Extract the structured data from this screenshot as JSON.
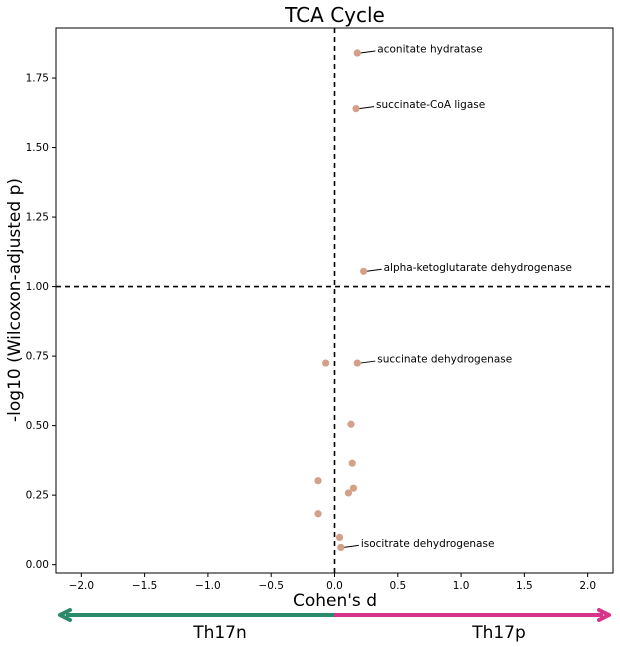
{
  "chart_data": {
    "type": "scatter",
    "title": "TCA Cycle",
    "xlabel": "Cohen's d",
    "ylabel": "-log10 (Wilcoxon-adjusted p)",
    "xlim": [
      -2.2,
      2.2
    ],
    "ylim": [
      -0.03,
      1.93
    ],
    "xticks": [
      -2.0,
      -1.5,
      -1.0,
      -0.5,
      0.0,
      0.5,
      1.0,
      1.5,
      2.0
    ],
    "xtick_labels": [
      "−2.0",
      "−1.5",
      "−1.0",
      "−0.5",
      "0.0",
      "0.5",
      "1.0",
      "1.5",
      "2.0"
    ],
    "yticks": [
      0.0,
      0.25,
      0.5,
      0.75,
      1.0,
      1.25,
      1.5,
      1.75
    ],
    "ytick_labels": [
      "0.00",
      "0.25",
      "0.50",
      "0.75",
      "1.00",
      "1.25",
      "1.50",
      "1.75"
    ],
    "vline_x": 0.0,
    "hline_y": 1.0,
    "grid": false,
    "point_color": "#d4a088",
    "points": [
      {
        "x": 0.18,
        "y": 1.84,
        "label": "aconitate hydratase"
      },
      {
        "x": 0.17,
        "y": 1.64,
        "label": "succinate-CoA ligase"
      },
      {
        "x": 0.23,
        "y": 1.055,
        "label": "alpha-ketoglutarate dehydrogenase"
      },
      {
        "x": -0.07,
        "y": 0.725,
        "label": ""
      },
      {
        "x": 0.18,
        "y": 0.725,
        "label": "succinate dehydrogenase"
      },
      {
        "x": 0.13,
        "y": 0.505,
        "label": ""
      },
      {
        "x": 0.14,
        "y": 0.365,
        "label": ""
      },
      {
        "x": -0.13,
        "y": 0.302,
        "label": ""
      },
      {
        "x": 0.15,
        "y": 0.275,
        "label": ""
      },
      {
        "x": 0.11,
        "y": 0.258,
        "label": ""
      },
      {
        "x": -0.13,
        "y": 0.183,
        "label": ""
      },
      {
        "x": 0.04,
        "y": 0.098,
        "label": ""
      },
      {
        "x": 0.05,
        "y": 0.062,
        "label": "isocitrate dehydrogenase"
      }
    ],
    "arrows": {
      "left_label": "Th17n",
      "right_label": "Th17p",
      "left_color": "#2a8a6a",
      "right_color": "#d6338a"
    }
  }
}
